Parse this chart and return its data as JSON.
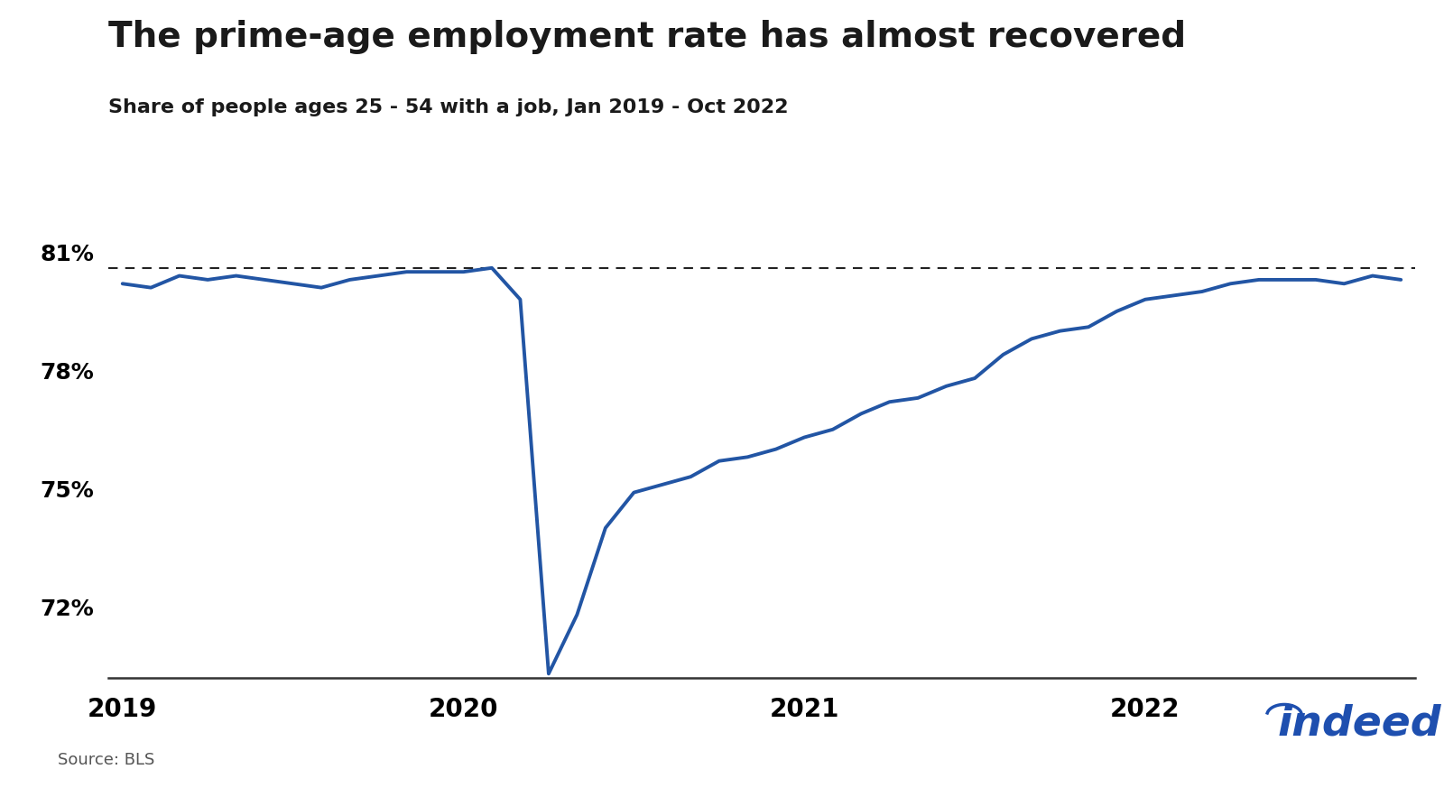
{
  "title": "The prime-age employment rate has almost recovered",
  "subtitle": "Share of people ages 25 - 54 with a job, Jan 2019 - Oct 2022",
  "source": "Source: BLS",
  "line_color": "#2255a4",
  "dashed_line_value": 80.6,
  "ylim": [
    70.2,
    81.8
  ],
  "yticks": [
    72,
    75,
    78,
    81
  ],
  "background_color": "#ffffff",
  "values": [
    80.2,
    80.1,
    80.4,
    80.3,
    80.4,
    80.3,
    80.2,
    80.1,
    80.3,
    80.4,
    80.5,
    80.5,
    80.5,
    80.6,
    79.8,
    70.3,
    71.8,
    74.0,
    74.9,
    75.1,
    75.3,
    75.7,
    75.8,
    76.0,
    76.3,
    76.5,
    76.9,
    77.2,
    77.3,
    77.6,
    77.8,
    78.4,
    78.8,
    79.0,
    79.1,
    79.5,
    79.8,
    79.9,
    80.0,
    80.2,
    80.3,
    80.3,
    80.3,
    80.2,
    80.4,
    80.3
  ],
  "xtick_years": [
    "2019",
    "2020",
    "2021",
    "2022"
  ],
  "xtick_positions": [
    0,
    12,
    24,
    36
  ]
}
